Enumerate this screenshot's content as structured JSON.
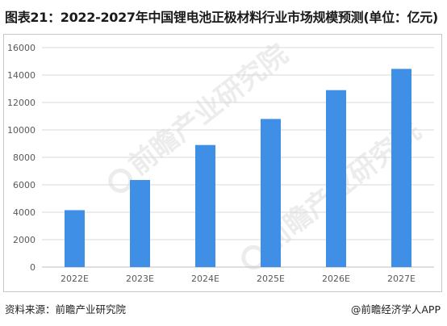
{
  "title": "图表21：2022-2027年中国锂电池正极材料行业市场规模预测(单位：亿元)",
  "watermark_text": "前瞻产业研究院",
  "footer": {
    "source": "资料来源：前瞻产业研究院",
    "credit": "@前瞻经济学人APP"
  },
  "colors": {
    "bar": "#3f8fe6",
    "axis": "#bfbfbf",
    "grid": "#d9d9d9",
    "text": "#595959"
  },
  "chart_data": {
    "type": "bar",
    "categories": [
      "2022E",
      "2023E",
      "2024E",
      "2025E",
      "2026E",
      "2027E"
    ],
    "values": [
      4150,
      6350,
      8900,
      10800,
      12900,
      14450
    ],
    "title": "",
    "xlabel": "",
    "ylabel": "",
    "ylim": [
      0,
      16000
    ],
    "yticks": [
      0,
      2000,
      4000,
      6000,
      8000,
      10000,
      12000,
      14000,
      16000
    ],
    "grid": true,
    "legend": "none"
  }
}
